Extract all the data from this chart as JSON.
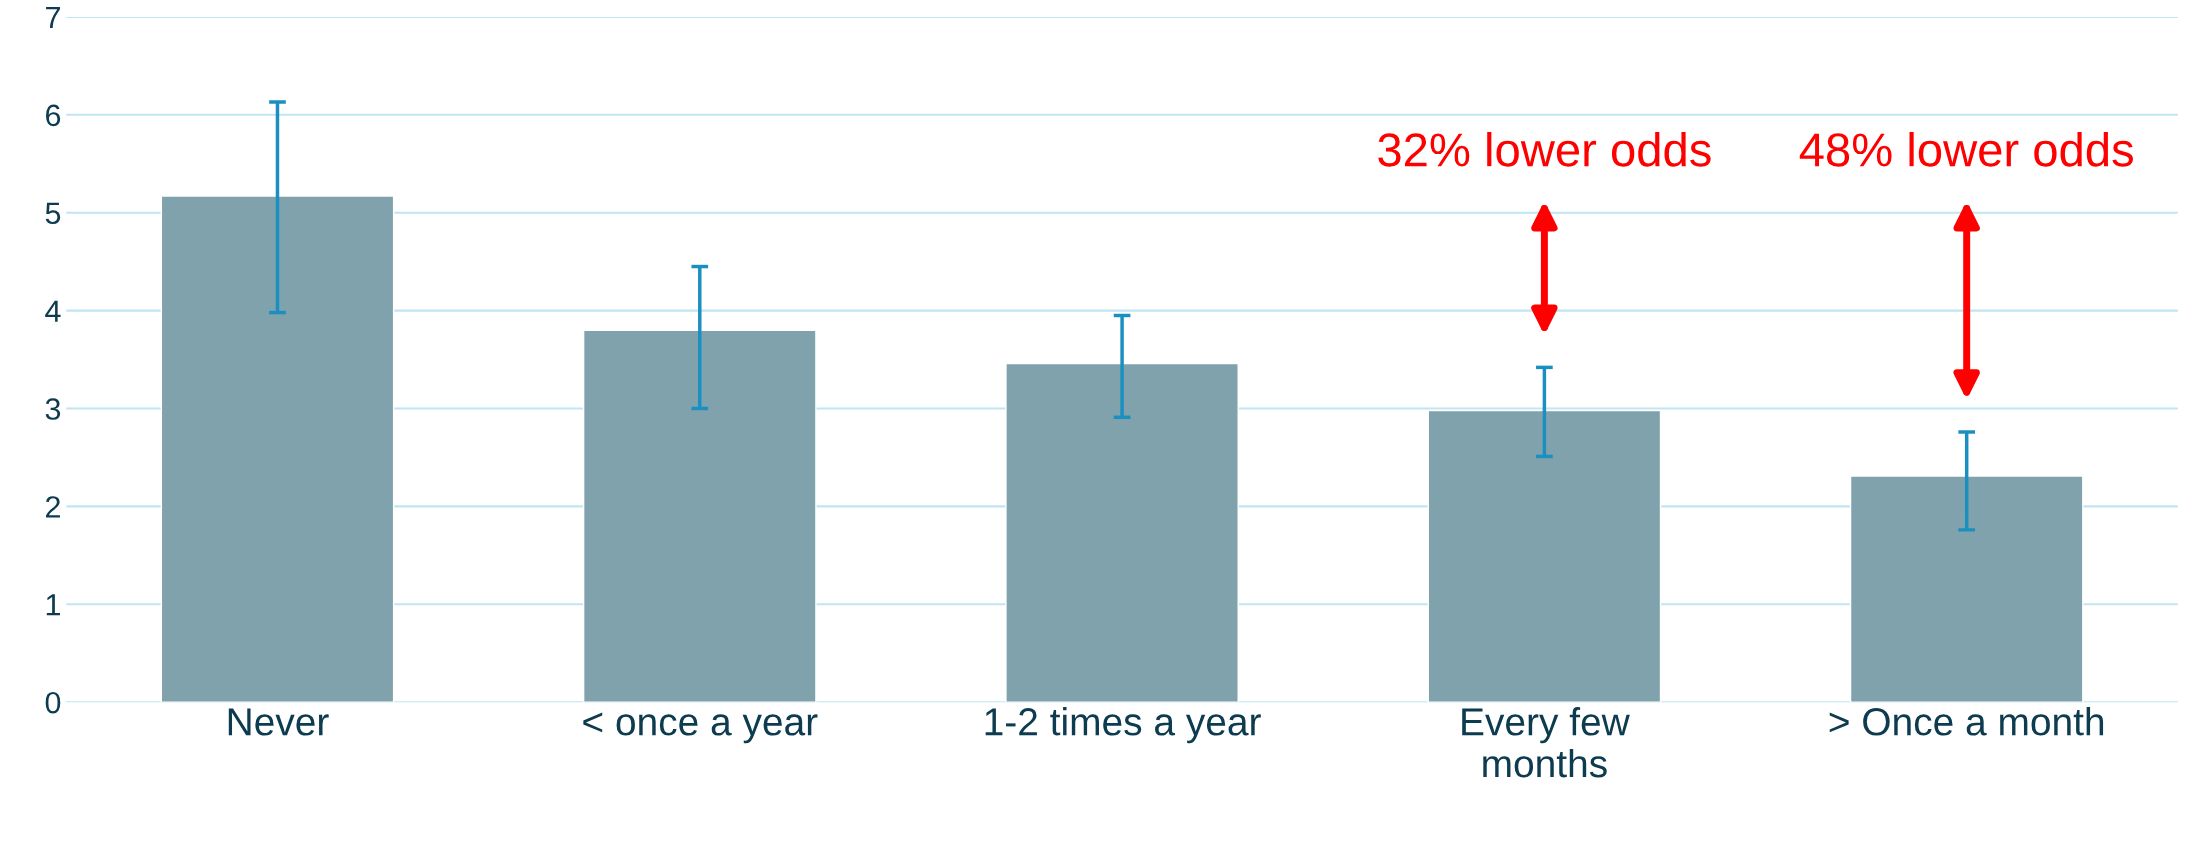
{
  "chart_data": {
    "type": "bar",
    "categories": [
      "Never",
      "< once a year",
      "1-2 times a year",
      "Every few\nmonths",
      "> Once a month"
    ],
    "values": [
      5.17,
      3.8,
      3.46,
      2.98,
      2.31
    ],
    "errors": [
      [
        3.98,
        6.13
      ],
      [
        3.0,
        4.45
      ],
      [
        2.91,
        3.95
      ],
      [
        2.51,
        3.42
      ],
      [
        1.76,
        2.76
      ]
    ],
    "color": "#80a2ad",
    "ylim": [
      0,
      7
    ],
    "yticks": [
      0,
      1,
      2,
      3,
      4,
      5,
      6,
      7
    ],
    "grid": "y",
    "annotations": [
      "32% lower odds",
      "48% lower odds"
    ]
  }
}
